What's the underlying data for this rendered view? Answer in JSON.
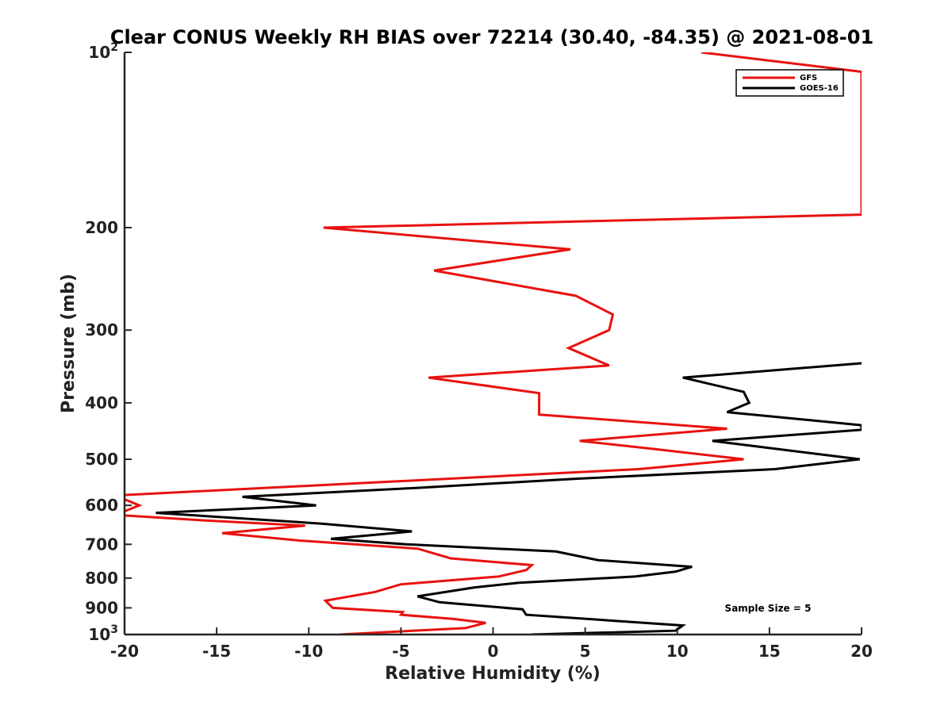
{
  "chart_data": {
    "type": "line",
    "title": "Clear CONUS Weekly RH BIAS over 72214 (30.40, -84.35) @ 2021-08-01",
    "xlabel": "Relative Humidity (%)",
    "ylabel": "Pressure (mb)",
    "xlim": [
      -20,
      20
    ],
    "ylim": [
      1000,
      100
    ],
    "yscale": "log",
    "xticks": [
      -20,
      -15,
      -10,
      -5,
      0,
      5,
      10,
      15,
      20
    ],
    "yticks": [
      {
        "value": 100,
        "label": "10",
        "sup": "2"
      },
      {
        "value": 200,
        "label": "200",
        "sup": ""
      },
      {
        "value": 300,
        "label": "300",
        "sup": ""
      },
      {
        "value": 400,
        "label": "400",
        "sup": ""
      },
      {
        "value": 500,
        "label": "500",
        "sup": ""
      },
      {
        "value": 600,
        "label": "600",
        "sup": ""
      },
      {
        "value": 700,
        "label": "700",
        "sup": ""
      },
      {
        "value": 800,
        "label": "800",
        "sup": ""
      },
      {
        "value": 900,
        "label": "900",
        "sup": ""
      },
      {
        "value": 1000,
        "label": "10",
        "sup": "3"
      }
    ],
    "legend": {
      "position": "top-right"
    },
    "annotation": "Sample Size = 5",
    "series": [
      {
        "name": "GFS",
        "color": "#e8120f",
        "points": [
          [
            11.3,
            100
          ],
          [
            20,
            108
          ],
          [
            20,
            190
          ],
          [
            -9.2,
            200
          ],
          [
            4.2,
            218
          ],
          [
            -3.2,
            237
          ],
          [
            4.5,
            262
          ],
          [
            6.5,
            282
          ],
          [
            6.3,
            300
          ],
          [
            4.1,
            322
          ],
          [
            6.3,
            345
          ],
          [
            -3.5,
            362
          ],
          [
            2.5,
            385
          ],
          [
            2.5,
            400
          ],
          [
            2.5,
            419
          ],
          [
            12.7,
            443
          ],
          [
            4.7,
            465
          ],
          [
            8.7,
            480
          ],
          [
            13.6,
            500
          ],
          [
            7.9,
            520
          ],
          [
            -20.5,
            577
          ],
          [
            -19.2,
            600
          ],
          [
            -20.5,
            623
          ],
          [
            -15.6,
            637
          ],
          [
            -10.2,
            650
          ],
          [
            -14.7,
            670
          ],
          [
            -10.4,
            690
          ],
          [
            -4.1,
            712
          ],
          [
            -2.3,
            740
          ],
          [
            2.1,
            760
          ],
          [
            1.8,
            775
          ],
          [
            0.3,
            795
          ],
          [
            -5.0,
            820
          ],
          [
            -6.4,
            845
          ],
          [
            -9.1,
            875
          ],
          [
            -8.7,
            900
          ],
          [
            -4.9,
            915
          ],
          [
            -5.0,
            925
          ],
          [
            -2.2,
            940
          ],
          [
            -0.4,
            955
          ],
          [
            -1.5,
            975
          ],
          [
            -8.3,
            1000
          ]
        ]
      },
      {
        "name": "GOES-16",
        "color": "#000000",
        "points": [
          [
            20,
            342
          ],
          [
            10.3,
            362
          ],
          [
            13.6,
            383
          ],
          [
            13.9,
            400
          ],
          [
            12.7,
            415
          ],
          [
            20,
            437
          ],
          [
            20,
            445
          ],
          [
            11.9,
            465
          ],
          [
            19.9,
            500
          ],
          [
            15.3,
            520
          ],
          [
            4.5,
            540
          ],
          [
            -4.2,
            560
          ],
          [
            -13.6,
            580
          ],
          [
            -9.6,
            600
          ],
          [
            -18.3,
            618
          ],
          [
            -9.3,
            645
          ],
          [
            -4.4,
            665
          ],
          [
            -8.8,
            685
          ],
          [
            -4.7,
            700
          ],
          [
            3.4,
            720
          ],
          [
            5.7,
            745
          ],
          [
            10.8,
            765
          ],
          [
            9.9,
            780
          ],
          [
            7.7,
            795
          ],
          [
            1.4,
            815
          ],
          [
            -1.0,
            830
          ],
          [
            -4.1,
            860
          ],
          [
            -2.9,
            880
          ],
          [
            1.6,
            905
          ],
          [
            1.8,
            925
          ],
          [
            10.3,
            965
          ],
          [
            9.9,
            985
          ],
          [
            2.1,
            1000
          ]
        ]
      }
    ]
  }
}
